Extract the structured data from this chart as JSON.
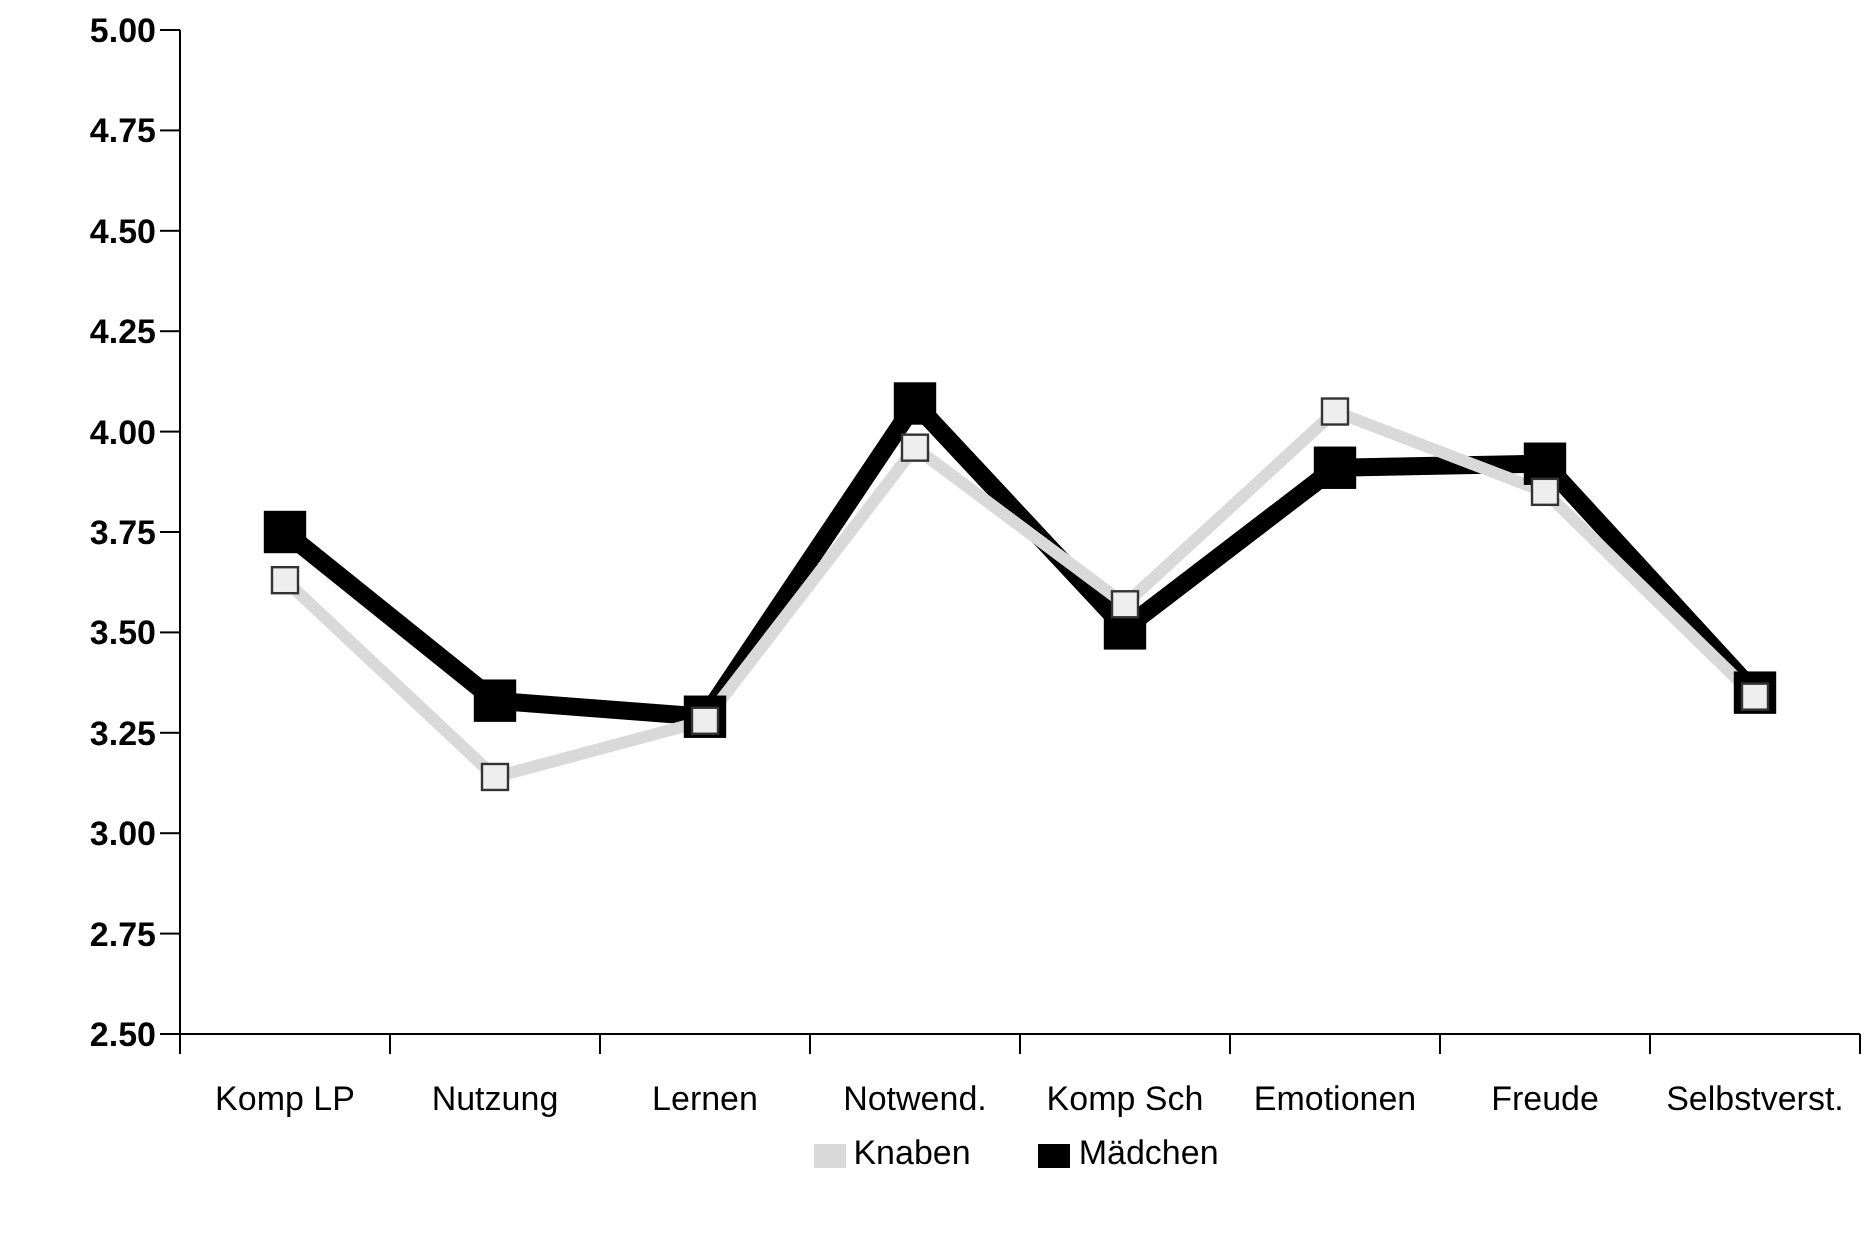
{
  "chart_data": {
    "type": "line",
    "categories": [
      "Komp LP",
      "Nutzung",
      "Lernen",
      "Notwend.",
      "Komp Sch",
      "Emotionen",
      "Freude",
      "Selbstverst."
    ],
    "series": [
      {
        "name": "Mädchen",
        "color": "#000000",
        "values": [
          3.75,
          3.33,
          3.29,
          4.07,
          3.51,
          3.91,
          3.92,
          3.35
        ]
      },
      {
        "name": "Knaben",
        "color": "#d9d9d9",
        "values": [
          3.63,
          3.14,
          3.28,
          3.96,
          3.57,
          4.05,
          3.85,
          3.34
        ]
      }
    ],
    "ylim": [
      2.5,
      5
    ],
    "yticks": [
      {
        "value": 2.5,
        "label": "2.50"
      },
      {
        "value": 2.75,
        "label": "2.75"
      },
      {
        "value": 3,
        "label": "3.00"
      },
      {
        "value": 3.25,
        "label": "3.25"
      },
      {
        "value": 3.5,
        "label": "3.50"
      },
      {
        "value": 3.75,
        "label": "3.75"
      },
      {
        "value": 4,
        "label": "4.00"
      },
      {
        "value": 4.25,
        "label": "4.25"
      },
      {
        "value": 4.5,
        "label": "4.50"
      },
      {
        "value": 4.75,
        "label": "4.75"
      },
      {
        "value": 5,
        "label": "5.00"
      }
    ],
    "marker": "square",
    "grid": false,
    "legend": "bottom"
  }
}
